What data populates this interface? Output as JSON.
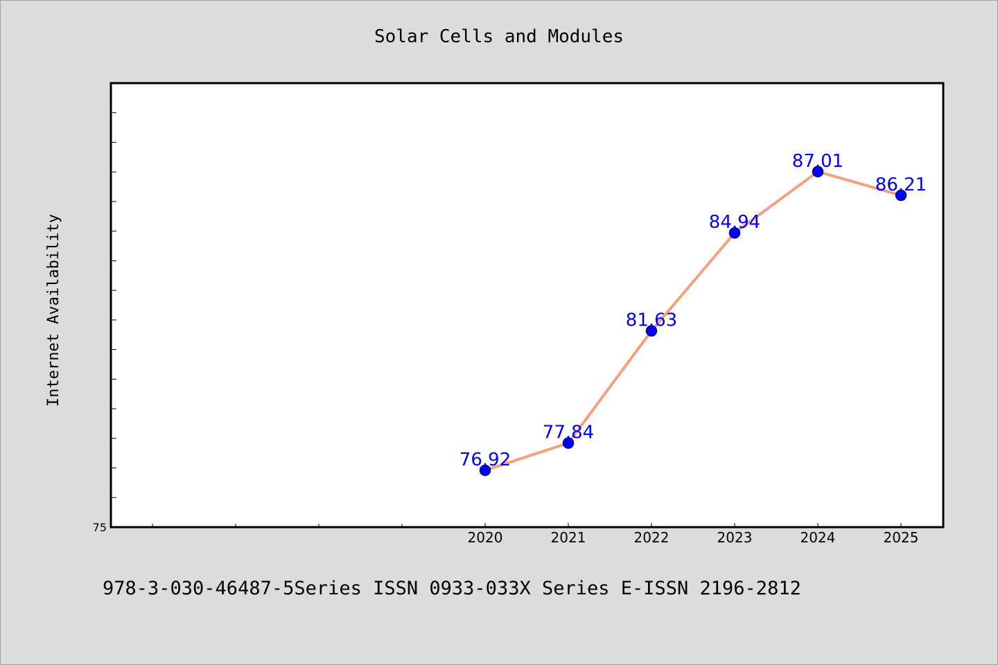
{
  "chart_data": {
    "type": "line",
    "title": "Solar Cells and Modules",
    "xlabel": "",
    "ylabel": "Internet Availability",
    "categories": [
      "2020",
      "2021",
      "2022",
      "2023",
      "2024",
      "2025"
    ],
    "values": [
      76.92,
      77.84,
      81.63,
      84.94,
      87.01,
      86.21
    ],
    "data_labels": [
      "76.92",
      "77.84",
      "81.63",
      "84.94",
      "87.01",
      "86.21"
    ],
    "ylim": [
      75,
      90
    ],
    "y_tick_labels": [
      "75"
    ],
    "grid": false,
    "legend": "none",
    "colors": {
      "line": "#f4a07c",
      "marker": "#0000ff",
      "marker_edge": "#000080",
      "data_label": "#0000ff",
      "plot_bg": "#ffffff",
      "page_bg": "#dcdcdc"
    }
  },
  "footer_text": "978-3-030-46487-5Series ISSN 0933-033X Series E-ISSN 2196-2812"
}
